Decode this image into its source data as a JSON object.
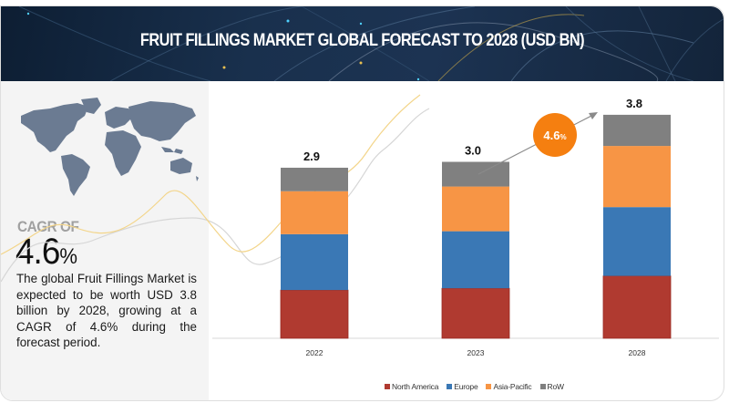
{
  "header": {
    "title": "FRUIT FILLINGS MARKET GLOBAL FORECAST TO 2028 (USD BN)"
  },
  "left_panel": {
    "map_icon": "world-map-icon",
    "cagr_label": "CAGR OF",
    "cagr_value": "4.6",
    "cagr_unit": "%",
    "description": "The global Fruit Fillings Market is expected to be worth USD 3.8 billion by 2028, growing at a CAGR of 4.6% during the forecast period."
  },
  "colors": {
    "north_america": "#b03a30",
    "europe": "#3a78b5",
    "asia_pacific": "#f79545",
    "row": "#808080",
    "cagr_badge": "#f57f10",
    "header_bg": "#172c48"
  },
  "chart_data": {
    "type": "bar",
    "stacked": true,
    "title": "FRUIT FILLINGS MARKET GLOBAL FORECAST TO 2028 (USD BN)",
    "xlabel": "",
    "ylabel": "",
    "categories": [
      "2022",
      "2023",
      "2028"
    ],
    "totals": [
      "2.9",
      "3.0",
      "3.8"
    ],
    "series": [
      {
        "name": "North America",
        "key": "north_america",
        "values": [
          0.82,
          0.85,
          1.06
        ]
      },
      {
        "name": "Europe",
        "key": "europe",
        "values": [
          0.95,
          0.97,
          1.17
        ]
      },
      {
        "name": "Asia-Pacific",
        "key": "asia_pacific",
        "values": [
          0.73,
          0.76,
          1.04
        ]
      },
      {
        "name": "RoW",
        "key": "row",
        "values": [
          0.4,
          0.42,
          0.53
        ]
      }
    ],
    "ylim": [
      0,
      3.8
    ],
    "grid": false,
    "legend": "bottom",
    "annotation": {
      "label": "4.6",
      "unit": "%",
      "meaning": "CAGR"
    }
  }
}
